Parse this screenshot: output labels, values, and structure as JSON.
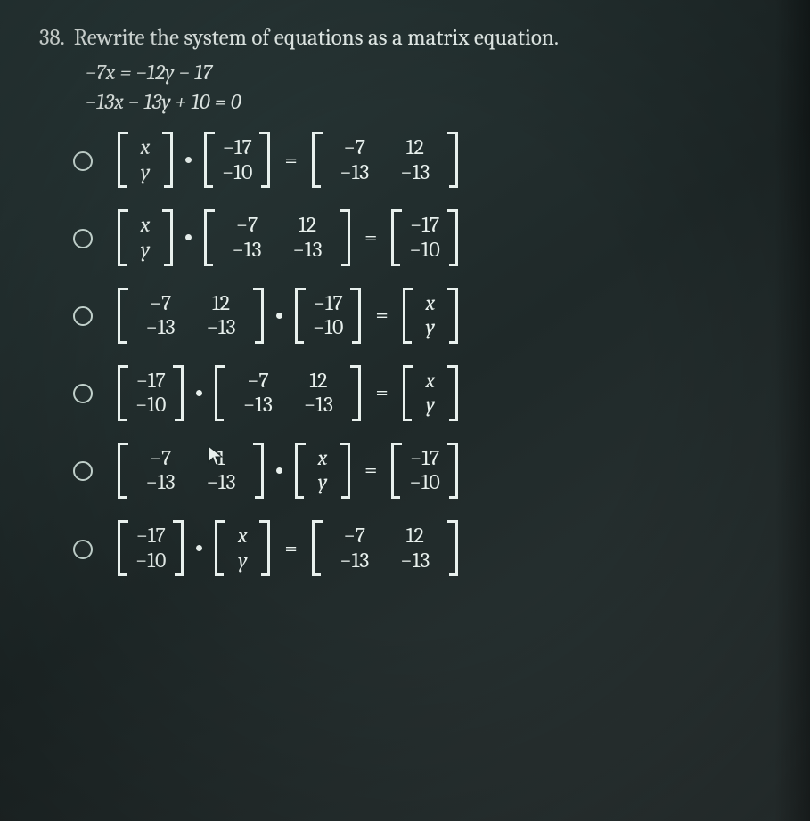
{
  "question": {
    "number": "38.",
    "prompt": "Rewrite the system of equations as a matrix equation.",
    "equations": [
      "−7x = −12y − 17",
      "−13x − 13y + 10 = 0"
    ]
  },
  "coeff_matrix": {
    "rows": [
      [
        "−7",
        "12"
      ],
      [
        "−13",
        "−13"
      ]
    ]
  },
  "const_vector": {
    "rows": [
      [
        "−17"
      ],
      [
        "−10"
      ]
    ]
  },
  "var_vector": {
    "rows": [
      [
        "x"
      ],
      [
        "y"
      ]
    ]
  },
  "options": [
    {
      "order": [
        "var",
        "dot",
        "const",
        "eq",
        "coeff"
      ]
    },
    {
      "order": [
        "var",
        "dot",
        "coeff",
        "eq",
        "const"
      ]
    },
    {
      "order": [
        "coeff",
        "dot",
        "const",
        "eq",
        "var"
      ]
    },
    {
      "order": [
        "const",
        "dot",
        "coeff",
        "eq",
        "var"
      ]
    },
    {
      "order": [
        "coeff",
        "dot",
        "var",
        "eq",
        "const"
      ]
    },
    {
      "order": [
        "const",
        "dot",
        "var",
        "eq",
        "coeff"
      ]
    }
  ],
  "cursor_option_index": 4,
  "colors": {
    "background": "#243131",
    "text": "#e8f0ed",
    "radio_border": "#cfe0da"
  },
  "font_family": "Georgia, Cambria, Times New Roman, serif",
  "type": "multiple-choice-math"
}
